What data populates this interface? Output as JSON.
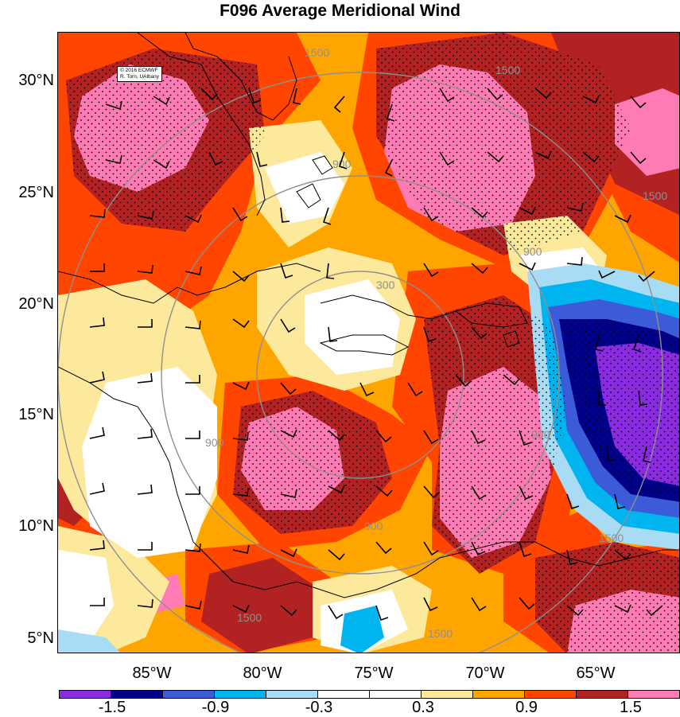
{
  "title": "F096 Average Meridional Wind",
  "credit": [
    "© 2016 ECMWF",
    "R. Torn, UAlbany"
  ],
  "lat_labels": [
    "30°N",
    "25°N",
    "20°N",
    "15°N",
    "10°N",
    "5°N"
  ],
  "lon_labels": [
    "85°W",
    "80°W",
    "75°W",
    "70°W",
    "65°W"
  ],
  "contour_labels": [
    "1500",
    "1500",
    "1500",
    "1500",
    "1500",
    "1500",
    "900",
    "900",
    "900",
    "900",
    "900",
    "300"
  ],
  "colorbar": {
    "colors": [
      "#8a2be2",
      "#00008b",
      "#3b5bd9",
      "#00b4f0",
      "#a8dcf5",
      "#ffffff",
      "#ffffff",
      "#fde99c",
      "#ffa500",
      "#ff4500",
      "#b22222",
      "#ff7bb4"
    ],
    "labels": [
      "-1.5",
      "-0.9",
      "-0.3",
      "0.3",
      "0.9",
      "1.5"
    ]
  }
}
